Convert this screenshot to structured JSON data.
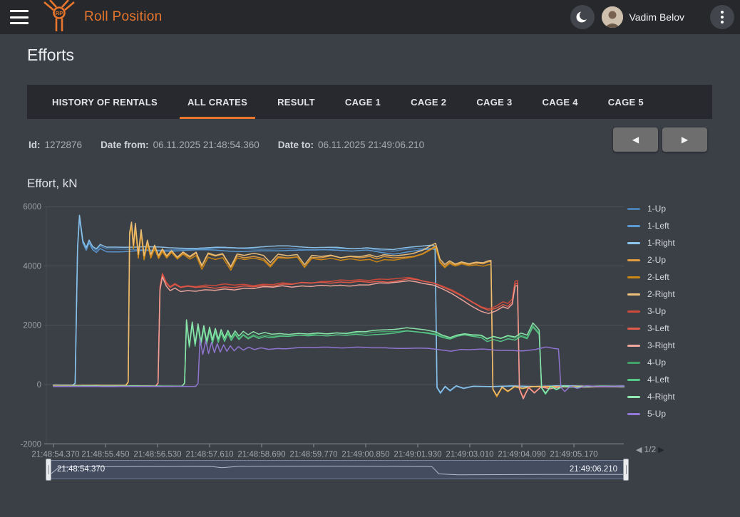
{
  "header": {
    "brand": "Roll Position",
    "user_name": "Vadim Belov"
  },
  "page": {
    "title": "Efforts"
  },
  "tabs": {
    "active_index": 1,
    "items": [
      {
        "label": "HISTORY OF RENTALS"
      },
      {
        "label": "ALL CRATES"
      },
      {
        "label": "RESULT"
      },
      {
        "label": "CAGE 1"
      },
      {
        "label": "CAGE 2"
      },
      {
        "label": "CAGE 3"
      },
      {
        "label": "CAGE 4"
      },
      {
        "label": "CAGE 5"
      }
    ]
  },
  "meta": {
    "id_label": "Id:",
    "id_value": "1272876",
    "date_from_label": "Date from:",
    "date_from_value": "06.11.2025 21:48:54.360",
    "date_to_label": "Date to:",
    "date_to_value": "06.11.2025 21:49:06.210"
  },
  "icons": {
    "prev": "◀",
    "next": "▶",
    "pager_prev": "◀",
    "pager_next": "▶"
  },
  "colors": {
    "accent": "#e8762c",
    "appbar_bg": "#26282c",
    "page_bg": "#3b3f46",
    "tabbar_bg": "#28292e"
  },
  "chart_data": {
    "type": "line",
    "title": "Effort, kN",
    "ylabel": "Effort, kN",
    "ylim": [
      -2000,
      6000
    ],
    "yticks": [
      6000,
      4000,
      2000,
      0,
      -2000
    ],
    "grid": true,
    "legend_position": "right",
    "legend_page": "1/2",
    "x_start": "21:48:54.370",
    "x_end": "21:49:06.210",
    "x_span_seconds": 11.84,
    "xticks": [
      "21:48:54.370",
      "21:48:55.450",
      "21:48:56.530",
      "21:48:57.610",
      "21:48:58.690",
      "21:48:59.770",
      "21:49:00.850",
      "21:49:01.930",
      "21:49:03.010",
      "21:49:04.090",
      "21:49:05.170"
    ],
    "groups": {
      "g1": [
        [
          0,
          -20
        ],
        [
          0.4,
          -20
        ],
        [
          0.45,
          40
        ],
        [
          0.5,
          4600
        ],
        [
          0.54,
          5680
        ],
        [
          0.61,
          4820
        ],
        [
          0.68,
          4580
        ],
        [
          0.74,
          4830
        ],
        [
          0.81,
          4610
        ],
        [
          0.89,
          4520
        ],
        [
          0.97,
          4660
        ],
        [
          1.1,
          4560
        ],
        [
          1.4,
          4560
        ],
        [
          1.9,
          4575
        ],
        [
          2.4,
          4545
        ],
        [
          2.9,
          4565
        ],
        [
          3.4,
          4585
        ],
        [
          3.9,
          4560
        ],
        [
          4.4,
          4575
        ],
        [
          4.9,
          4595
        ],
        [
          5.4,
          4565
        ],
        [
          5.9,
          4575
        ],
        [
          6.2,
          4550
        ],
        [
          6.5,
          4585
        ],
        [
          6.8,
          4515
        ],
        [
          7.05,
          4480
        ],
        [
          7.35,
          4555
        ],
        [
          7.6,
          4600
        ],
        [
          7.85,
          4625
        ],
        [
          7.92,
          4590
        ],
        [
          7.96,
          -100
        ],
        [
          8.03,
          -290
        ],
        [
          8.13,
          -70
        ],
        [
          8.23,
          -210
        ],
        [
          8.36,
          -50
        ],
        [
          8.51,
          -130
        ],
        [
          8.71,
          -60
        ],
        [
          9.1,
          -70
        ],
        [
          9.5,
          -50
        ],
        [
          10.0,
          -70
        ],
        [
          10.5,
          -50
        ],
        [
          11.1,
          -60
        ],
        [
          11.84,
          -55
        ]
      ],
      "g2": [
        [
          0,
          -35
        ],
        [
          1.5,
          -35
        ],
        [
          1.55,
          80
        ],
        [
          1.58,
          5050
        ],
        [
          1.62,
          5400
        ],
        [
          1.66,
          4620
        ],
        [
          1.7,
          5360
        ],
        [
          1.76,
          4310
        ],
        [
          1.82,
          5140
        ],
        [
          1.88,
          4260
        ],
        [
          1.95,
          4790
        ],
        [
          2.02,
          4310
        ],
        [
          2.1,
          4630
        ],
        [
          2.18,
          4290
        ],
        [
          2.26,
          4520
        ],
        [
          2.35,
          4300
        ],
        [
          2.45,
          4480
        ],
        [
          2.57,
          4265
        ],
        [
          2.69,
          4440
        ],
        [
          2.83,
          4285
        ],
        [
          2.96,
          4420
        ],
        [
          3.08,
          3965
        ],
        [
          3.21,
          4380
        ],
        [
          3.36,
          4300
        ],
        [
          3.51,
          4360
        ],
        [
          3.68,
          3925
        ],
        [
          3.81,
          4340
        ],
        [
          3.96,
          4285
        ],
        [
          4.16,
          4340
        ],
        [
          4.36,
          4260
        ],
        [
          4.5,
          4025
        ],
        [
          4.66,
          4320
        ],
        [
          4.86,
          4285
        ],
        [
          5.06,
          4330
        ],
        [
          5.21,
          3985
        ],
        [
          5.36,
          4300
        ],
        [
          5.56,
          4265
        ],
        [
          5.76,
          4320
        ],
        [
          5.96,
          4245
        ],
        [
          6.16,
          4300
        ],
        [
          6.36,
          4265
        ],
        [
          6.56,
          4310
        ],
        [
          6.71,
          4225
        ],
        [
          6.86,
          4300
        ],
        [
          7.06,
          4265
        ],
        [
          7.26,
          4300
        ],
        [
          7.46,
          4345
        ],
        [
          7.66,
          4445
        ],
        [
          7.83,
          4600
        ],
        [
          7.93,
          4685
        ],
        [
          8.02,
          4160
        ],
        [
          8.12,
          3985
        ],
        [
          8.22,
          4120
        ],
        [
          8.34,
          4025
        ],
        [
          8.47,
          4105
        ],
        [
          8.62,
          4045
        ],
        [
          8.77,
          4090
        ],
        [
          8.92,
          4060
        ],
        [
          9.02,
          4120
        ],
        [
          9.08,
          4130
        ],
        [
          9.12,
          -160
        ],
        [
          9.2,
          -390
        ],
        [
          9.31,
          -90
        ],
        [
          9.43,
          -230
        ],
        [
          9.57,
          -70
        ],
        [
          9.73,
          -130
        ],
        [
          9.93,
          -70
        ],
        [
          10.45,
          -75
        ],
        [
          11.0,
          -65
        ],
        [
          11.84,
          -70
        ]
      ],
      "g3": [
        [
          0,
          -45
        ],
        [
          2.12,
          -45
        ],
        [
          2.17,
          60
        ],
        [
          2.21,
          3300
        ],
        [
          2.26,
          3750
        ],
        [
          2.34,
          3450
        ],
        [
          2.42,
          3300
        ],
        [
          2.52,
          3400
        ],
        [
          2.64,
          3290
        ],
        [
          2.79,
          3330
        ],
        [
          2.95,
          3300
        ],
        [
          3.15,
          3340
        ],
        [
          3.35,
          3310
        ],
        [
          3.55,
          3360
        ],
        [
          3.75,
          3330
        ],
        [
          3.95,
          3380
        ],
        [
          4.15,
          3350
        ],
        [
          4.35,
          3400
        ],
        [
          4.55,
          3380
        ],
        [
          4.75,
          3440
        ],
        [
          4.95,
          3410
        ],
        [
          5.15,
          3460
        ],
        [
          5.35,
          3440
        ],
        [
          5.55,
          3480
        ],
        [
          5.75,
          3460
        ],
        [
          5.95,
          3500
        ],
        [
          6.15,
          3480
        ],
        [
          6.35,
          3520
        ],
        [
          6.55,
          3500
        ],
        [
          6.75,
          3545
        ],
        [
          6.95,
          3530
        ],
        [
          7.15,
          3570
        ],
        [
          7.38,
          3620
        ],
        [
          7.53,
          3580
        ],
        [
          7.68,
          3520
        ],
        [
          7.88,
          3460
        ],
        [
          8.08,
          3330
        ],
        [
          8.28,
          3180
        ],
        [
          8.48,
          3000
        ],
        [
          8.68,
          2800
        ],
        [
          8.88,
          2620
        ],
        [
          9.03,
          2540
        ],
        [
          9.18,
          2620
        ],
        [
          9.33,
          2760
        ],
        [
          9.43,
          2700
        ],
        [
          9.52,
          2850
        ],
        [
          9.58,
          3460
        ],
        [
          9.63,
          3480
        ],
        [
          9.67,
          -140
        ],
        [
          9.75,
          -430
        ],
        [
          9.86,
          -90
        ],
        [
          9.98,
          -260
        ],
        [
          10.12,
          -70
        ],
        [
          10.31,
          -130
        ],
        [
          10.51,
          -70
        ],
        [
          10.95,
          -75
        ],
        [
          11.35,
          -60
        ],
        [
          11.84,
          -65
        ]
      ],
      "g4": [
        [
          0,
          -55
        ],
        [
          2.67,
          -55
        ],
        [
          2.72,
          50
        ],
        [
          2.76,
          2150
        ],
        [
          2.82,
          1280
        ],
        [
          2.88,
          2070
        ],
        [
          2.94,
          1330
        ],
        [
          3.0,
          2000
        ],
        [
          3.06,
          1380
        ],
        [
          3.12,
          1940
        ],
        [
          3.18,
          1420
        ],
        [
          3.24,
          1890
        ],
        [
          3.3,
          1460
        ],
        [
          3.36,
          1850
        ],
        [
          3.42,
          1490
        ],
        [
          3.48,
          1810
        ],
        [
          3.55,
          1520
        ],
        [
          3.62,
          1780
        ],
        [
          3.69,
          1545
        ],
        [
          3.77,
          1750
        ],
        [
          3.85,
          1570
        ],
        [
          3.94,
          1720
        ],
        [
          4.04,
          1595
        ],
        [
          4.15,
          1700
        ],
        [
          4.26,
          1615
        ],
        [
          4.38,
          1680
        ],
        [
          4.53,
          1635
        ],
        [
          4.7,
          1670
        ],
        [
          4.88,
          1650
        ],
        [
          5.08,
          1680
        ],
        [
          5.28,
          1660
        ],
        [
          5.48,
          1700
        ],
        [
          5.68,
          1680
        ],
        [
          5.88,
          1720
        ],
        [
          6.08,
          1700
        ],
        [
          6.28,
          1740
        ],
        [
          6.48,
          1720
        ],
        [
          6.68,
          1760
        ],
        [
          6.88,
          1780
        ],
        [
          7.08,
          1800
        ],
        [
          7.33,
          1850
        ],
        [
          7.53,
          1810
        ],
        [
          7.73,
          1770
        ],
        [
          7.93,
          1720
        ],
        [
          8.08,
          1620
        ],
        [
          8.23,
          1560
        ],
        [
          8.38,
          1650
        ],
        [
          8.53,
          1690
        ],
        [
          8.68,
          1650
        ],
        [
          8.88,
          1620
        ],
        [
          9.0,
          1500
        ],
        [
          9.13,
          1580
        ],
        [
          9.28,
          1520
        ],
        [
          9.43,
          1610
        ],
        [
          9.58,
          1560
        ],
        [
          9.7,
          1680
        ],
        [
          9.83,
          1600
        ],
        [
          9.95,
          2000
        ],
        [
          10.03,
          1850
        ],
        [
          10.08,
          1750
        ],
        [
          10.13,
          -110
        ],
        [
          10.21,
          -310
        ],
        [
          10.32,
          -70
        ],
        [
          10.44,
          -170
        ],
        [
          10.58,
          -50
        ],
        [
          10.82,
          -90
        ],
        [
          11.25,
          -55
        ],
        [
          11.84,
          -65
        ]
      ],
      "g5": [
        [
          0,
          -65
        ],
        [
          2.95,
          -65
        ],
        [
          3.0,
          30
        ],
        [
          3.04,
          1500
        ],
        [
          3.1,
          1000
        ],
        [
          3.16,
          1460
        ],
        [
          3.22,
          1040
        ],
        [
          3.28,
          1420
        ],
        [
          3.34,
          1080
        ],
        [
          3.4,
          1390
        ],
        [
          3.46,
          1110
        ],
        [
          3.53,
          1360
        ],
        [
          3.6,
          1140
        ],
        [
          3.67,
          1330
        ],
        [
          3.75,
          1160
        ],
        [
          3.84,
          1300
        ],
        [
          3.94,
          1175
        ],
        [
          4.05,
          1270
        ],
        [
          4.17,
          1190
        ],
        [
          4.31,
          1250
        ],
        [
          4.47,
          1205
        ],
        [
          4.65,
          1235
        ],
        [
          4.84,
          1215
        ],
        [
          5.1,
          1235
        ],
        [
          5.4,
          1220
        ],
        [
          5.7,
          1245
        ],
        [
          6.0,
          1230
        ],
        [
          6.3,
          1255
        ],
        [
          6.6,
          1240
        ],
        [
          6.9,
          1265
        ],
        [
          7.2,
          1250
        ],
        [
          7.5,
          1235
        ],
        [
          7.8,
          1210
        ],
        [
          8.05,
          1160
        ],
        [
          8.25,
          1120
        ],
        [
          8.45,
          1170
        ],
        [
          8.65,
          1150
        ],
        [
          8.9,
          1170
        ],
        [
          9.2,
          1150
        ],
        [
          9.5,
          1170
        ],
        [
          9.75,
          1150
        ],
        [
          10.0,
          1190
        ],
        [
          10.22,
          1280
        ],
        [
          10.38,
          1240
        ],
        [
          10.48,
          1220
        ],
        [
          10.53,
          -90
        ],
        [
          10.61,
          -230
        ],
        [
          10.73,
          -50
        ],
        [
          10.87,
          -130
        ],
        [
          11.05,
          -45
        ],
        [
          11.35,
          -70
        ],
        [
          11.84,
          -55
        ]
      ]
    },
    "series": [
      {
        "name": "1-Up",
        "group": "g1",
        "color": "#4a7db0",
        "offset": 0,
        "phase": 0.3
      },
      {
        "name": "1-Left",
        "group": "g1",
        "color": "#5b9bd5",
        "offset": -55,
        "phase": 2.1
      },
      {
        "name": "1-Right",
        "group": "g1",
        "color": "#8ec6ec",
        "offset": 55,
        "phase": 4.2
      },
      {
        "name": "2-Up",
        "group": "g2",
        "color": "#e09c3f",
        "offset": 0,
        "phase": 1.1
      },
      {
        "name": "2-Left",
        "group": "g2",
        "color": "#cd8712",
        "offset": -60,
        "phase": 3.4
      },
      {
        "name": "2-Right",
        "group": "g2",
        "color": "#eec27a",
        "offset": 60,
        "phase": 5.0
      },
      {
        "name": "3-Up",
        "group": "g3",
        "color": "#ce4a3b",
        "offset": 0,
        "phase": 0.8
      },
      {
        "name": "3-Left",
        "group": "g3",
        "color": "#e25a49",
        "offset": -45,
        "phase": 2.7
      },
      {
        "name": "3-Right",
        "group": "g3",
        "color": "#f0a79e",
        "offset": -130,
        "phase": 4.6
      },
      {
        "name": "4-Up",
        "group": "g4",
        "color": "#42a268",
        "offset": 0,
        "phase": 1.6
      },
      {
        "name": "4-Left",
        "group": "g4",
        "color": "#57c987",
        "offset": -45,
        "phase": 3.1
      },
      {
        "name": "4-Right",
        "group": "g4",
        "color": "#8fe9ae",
        "offset": 50,
        "phase": 5.4
      },
      {
        "name": "5-Up",
        "group": "g5",
        "color": "#9377d6",
        "offset": 0,
        "phase": 2.4
      }
    ]
  },
  "slider": {
    "left_label": "21:48:54.370",
    "right_label": "21:49:06.210",
    "overview": [
      [
        0,
        0.82
      ],
      [
        0.018,
        0.38
      ],
      [
        0.05,
        0.35
      ],
      [
        0.28,
        0.33
      ],
      [
        0.3,
        0.4
      ],
      [
        0.33,
        0.33
      ],
      [
        0.5,
        0.32
      ],
      [
        0.6,
        0.33
      ],
      [
        0.664,
        0.34
      ],
      [
        0.676,
        0.72
      ],
      [
        0.71,
        0.77
      ],
      [
        0.85,
        0.75
      ],
      [
        1,
        0.75
      ]
    ]
  },
  "legend_pager": {
    "text": "1/2"
  }
}
